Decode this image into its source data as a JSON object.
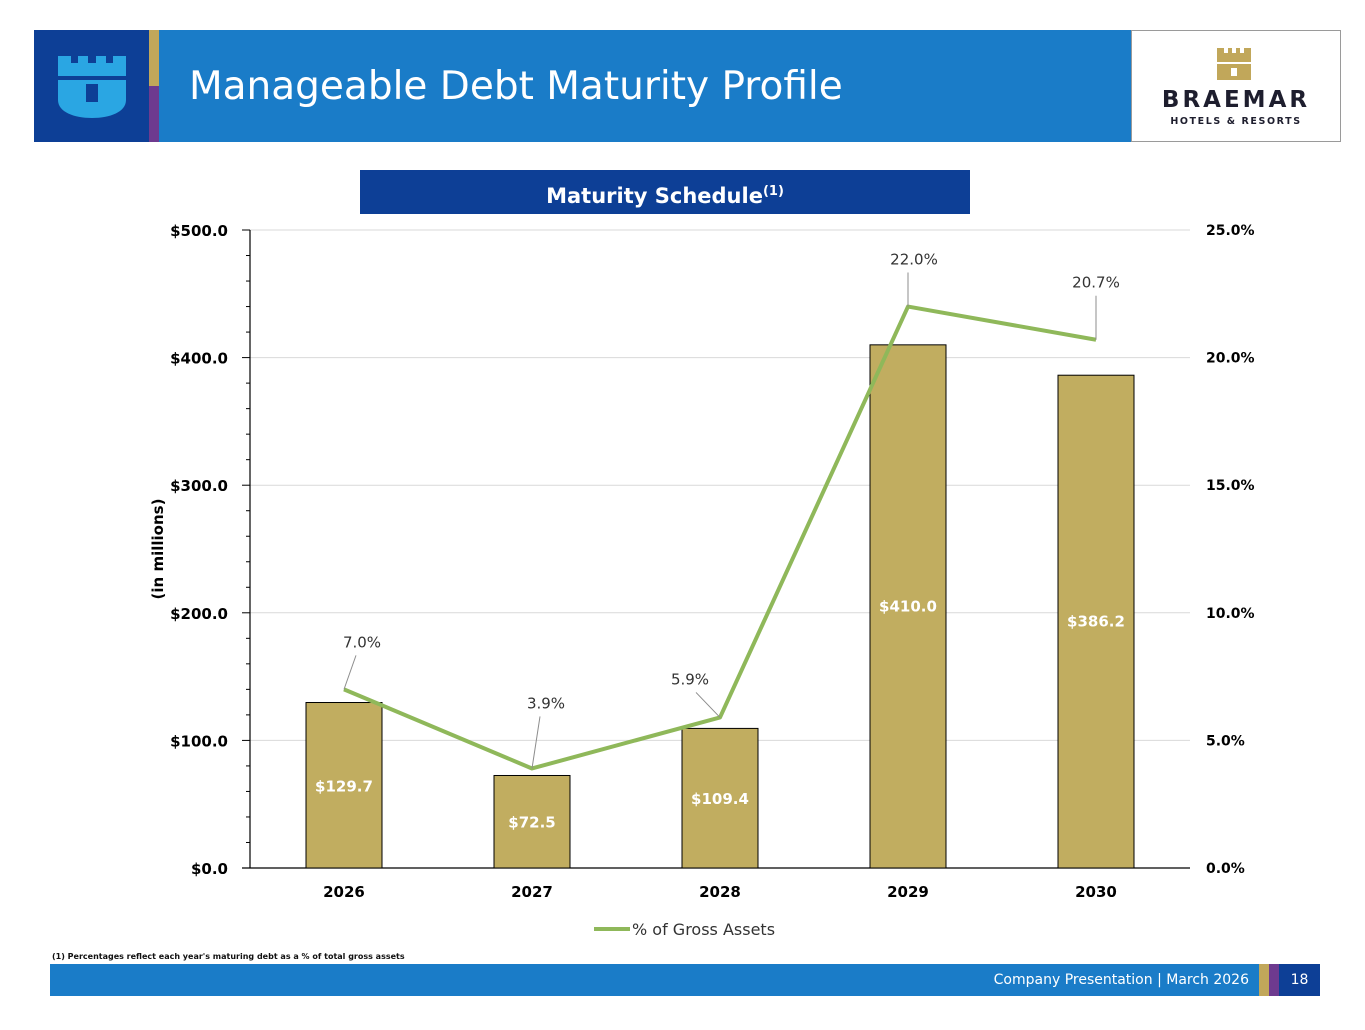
{
  "header": {
    "title": "Manageable Debt Maturity Profile",
    "brand": {
      "name": "BRAEMAR",
      "subtitle": "HOTELS & RESORTS"
    },
    "colors": {
      "navy": "#0d3f96",
      "blue": "#1a7cc8",
      "gold": "#c1a75a",
      "purple": "#6e3a8f"
    }
  },
  "schedule": {
    "title": "Maturity Schedule",
    "superscript": "(1)"
  },
  "chart_data": {
    "type": "bar",
    "categories": [
      "2026",
      "2027",
      "2028",
      "2029",
      "2030"
    ],
    "series": [
      {
        "type": "bar",
        "axis": "left",
        "values": [
          129.7,
          72.5,
          109.4,
          410.0,
          386.2
        ],
        "labels": [
          "$129.7",
          "$72.5",
          "$109.4",
          "$410.0",
          "$386.2"
        ],
        "color": "#c1ad60"
      },
      {
        "name": "% of Gross Assets",
        "type": "line",
        "axis": "right",
        "values": [
          7.0,
          3.9,
          5.9,
          22.0,
          20.7
        ],
        "labels": [
          "7.0%",
          "3.9%",
          "5.9%",
          "22.0%",
          "20.7%"
        ],
        "color": "#8fb85a"
      }
    ],
    "ylabel": "(in millions)",
    "ylim": [
      0,
      500
    ],
    "y2lim": [
      0,
      25
    ],
    "yticks": [
      "$0.0",
      "$100.0",
      "$200.0",
      "$300.0",
      "$400.0",
      "$500.0"
    ],
    "y2ticks": [
      "0.0%",
      "5.0%",
      "10.0%",
      "15.0%",
      "20.0%",
      "25.0%"
    ],
    "grid": true,
    "legend": "bottom-center"
  },
  "footnote": "(1) Percentages reflect each year's maturing debt as a % of total gross assets",
  "footer": {
    "text": "Company Presentation | March 2026",
    "page": "18"
  }
}
